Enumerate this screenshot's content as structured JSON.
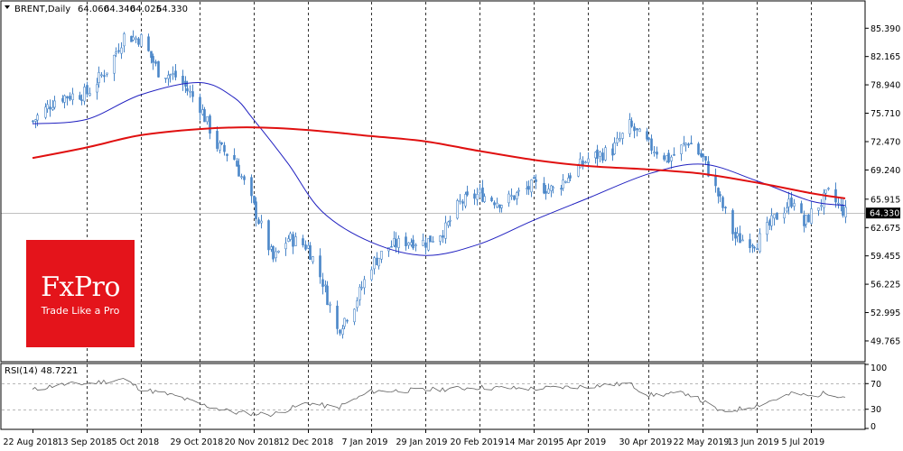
{
  "header": {
    "symbol_label": "BRENT,Daily",
    "ohlc": [
      "64.060",
      "64.340",
      "64.025",
      "64.330"
    ]
  },
  "logo": {
    "name": "FxPro",
    "tagline": "Trade Like a Pro"
  },
  "colors": {
    "candle": "#4a86c8",
    "ma_fast": "#2020c0",
    "ma_slow": "#e01010",
    "grid_vertical": "#000000",
    "rsi_line": "#606060",
    "current_price_label": "#000000",
    "logo_bg": "#e4141b"
  },
  "chart_data": [
    {
      "type": "candlestick",
      "symbol": "BRENT",
      "timeframe": "Daily",
      "last_close": 64.33,
      "price_tick_labels": [
        "85.390",
        "82.165",
        "78.940",
        "75.710",
        "72.470",
        "69.240",
        "65.915",
        "62.675",
        "59.455",
        "56.225",
        "52.995",
        "49.765"
      ],
      "current_price_label": "64.330",
      "ylim": [
        47.5,
        88.4
      ],
      "x_tick_labels": [
        "22 Aug 2018",
        "13 Sep 2018",
        "5 Oct 2018",
        "29 Oct 2018",
        "20 Nov 2018",
        "12 Dec 2018",
        "7 Jan 2019",
        "29 Jan 2019",
        "20 Feb 2019",
        "14 Mar 2019",
        "5 Apr 2019",
        "30 Apr 2019",
        "22 May 2019",
        "13 Jun 2019",
        "5 Jul 2019"
      ],
      "vertical_separators": [
        "13 Sep 2018",
        "5 Oct 2018",
        "29 Oct 2018",
        "20 Nov 2018",
        "12 Dec 2018",
        "7 Jan 2019",
        "29 Jan 2019",
        "20 Feb 2019",
        "14 Mar 2019",
        "5 Apr 2019",
        "30 Apr 2019",
        "22 May 2019",
        "13 Jun 2019",
        "5 Jul 2019"
      ],
      "close_path": [
        {
          "date": "2018-08-22",
          "close": 74.8
        },
        {
          "date": "2018-09-01",
          "close": 77.5
        },
        {
          "date": "2018-09-13",
          "close": 78.0
        },
        {
          "date": "2018-09-22",
          "close": 81.0
        },
        {
          "date": "2018-09-28",
          "close": 84.5
        },
        {
          "date": "2018-10-05",
          "close": 84.2
        },
        {
          "date": "2018-10-12",
          "close": 80.5
        },
        {
          "date": "2018-10-20",
          "close": 79.8
        },
        {
          "date": "2018-10-29",
          "close": 76.5
        },
        {
          "date": "2018-11-05",
          "close": 72.0
        },
        {
          "date": "2018-11-12",
          "close": 70.5
        },
        {
          "date": "2018-11-20",
          "close": 65.0
        },
        {
          "date": "2018-11-28",
          "close": 59.0
        },
        {
          "date": "2018-12-04",
          "close": 61.5
        },
        {
          "date": "2018-12-12",
          "close": 60.5
        },
        {
          "date": "2018-12-18",
          "close": 56.5
        },
        {
          "date": "2018-12-24",
          "close": 51.0
        },
        {
          "date": "2018-12-31",
          "close": 54.0
        },
        {
          "date": "2019-01-07",
          "close": 58.5
        },
        {
          "date": "2019-01-14",
          "close": 60.5
        },
        {
          "date": "2019-01-22",
          "close": 61.2
        },
        {
          "date": "2019-01-29",
          "close": 61.0
        },
        {
          "date": "2019-02-06",
          "close": 62.5
        },
        {
          "date": "2019-02-12",
          "close": 65.5
        },
        {
          "date": "2019-02-20",
          "close": 66.5
        },
        {
          "date": "2019-03-01",
          "close": 65.5
        },
        {
          "date": "2019-03-14",
          "close": 67.5
        },
        {
          "date": "2019-03-22",
          "close": 67.0
        },
        {
          "date": "2019-04-01",
          "close": 69.5
        },
        {
          "date": "2019-04-05",
          "close": 70.5
        },
        {
          "date": "2019-04-15",
          "close": 71.5
        },
        {
          "date": "2019-04-22",
          "close": 74.3
        },
        {
          "date": "2019-04-30",
          "close": 72.0
        },
        {
          "date": "2019-05-08",
          "close": 70.5
        },
        {
          "date": "2019-05-16",
          "close": 72.5
        },
        {
          "date": "2019-05-22",
          "close": 70.5
        },
        {
          "date": "2019-05-30",
          "close": 65.0
        },
        {
          "date": "2019-06-04",
          "close": 61.5
        },
        {
          "date": "2019-06-13",
          "close": 61.0
        },
        {
          "date": "2019-06-21",
          "close": 64.0
        },
        {
          "date": "2019-06-28",
          "close": 66.0
        },
        {
          "date": "2019-07-02",
          "close": 63.0
        },
        {
          "date": "2019-07-05",
          "close": 64.3
        },
        {
          "date": "2019-07-12",
          "close": 66.5
        },
        {
          "date": "2019-07-19",
          "close": 64.33
        }
      ],
      "overlays": [
        {
          "color": "#2020c0",
          "values": [
            {
              "date": "2018-08-22",
              "value": 74.5
            },
            {
              "date": "2018-09-13",
              "value": 75.0
            },
            {
              "date": "2018-10-05",
              "value": 77.8
            },
            {
              "date": "2018-10-29",
              "value": 79.2
            },
            {
              "date": "2018-11-12",
              "value": 77.5
            },
            {
              "date": "2018-11-20",
              "value": 75.0
            },
            {
              "date": "2018-12-04",
              "value": 70.0
            },
            {
              "date": "2018-12-18",
              "value": 64.5
            },
            {
              "date": "2019-01-07",
              "value": 61.0
            },
            {
              "date": "2019-01-29",
              "value": 59.5
            },
            {
              "date": "2019-02-20",
              "value": 60.8
            },
            {
              "date": "2019-03-14",
              "value": 63.5
            },
            {
              "date": "2019-04-05",
              "value": 66.0
            },
            {
              "date": "2019-04-30",
              "value": 68.8
            },
            {
              "date": "2019-05-22",
              "value": 69.9
            },
            {
              "date": "2019-06-13",
              "value": 68.0
            },
            {
              "date": "2019-07-05",
              "value": 65.7
            },
            {
              "date": "2019-07-19",
              "value": 65.2
            }
          ]
        },
        {
          "color": "#e01010",
          "values": [
            {
              "date": "2018-08-22",
              "value": 70.6
            },
            {
              "date": "2018-09-13",
              "value": 71.8
            },
            {
              "date": "2018-10-05",
              "value": 73.2
            },
            {
              "date": "2018-10-29",
              "value": 73.9
            },
            {
              "date": "2018-11-20",
              "value": 74.1
            },
            {
              "date": "2018-12-12",
              "value": 73.8
            },
            {
              "date": "2019-01-07",
              "value": 73.1
            },
            {
              "date": "2019-01-29",
              "value": 72.5
            },
            {
              "date": "2019-02-20",
              "value": 71.4
            },
            {
              "date": "2019-03-14",
              "value": 70.4
            },
            {
              "date": "2019-04-05",
              "value": 69.7
            },
            {
              "date": "2019-04-30",
              "value": 69.3
            },
            {
              "date": "2019-05-22",
              "value": 68.8
            },
            {
              "date": "2019-06-13",
              "value": 67.8
            },
            {
              "date": "2019-07-05",
              "value": 66.6
            },
            {
              "date": "2019-07-19",
              "value": 66.0
            }
          ]
        }
      ]
    },
    {
      "type": "line",
      "indicator_label": "RSI(14) 48.7221",
      "indicator_name": "RSI(14)",
      "last_value": 48.7221,
      "levels": [
        70,
        30
      ],
      "ylim": [
        0,
        100
      ],
      "y_tick_labels": [
        "100",
        "70",
        "30",
        "0"
      ],
      "values": [
        {
          "date": "2018-08-22",
          "value": 60
        },
        {
          "date": "2018-09-01",
          "value": 68
        },
        {
          "date": "2018-09-13",
          "value": 70
        },
        {
          "date": "2018-09-28",
          "value": 77
        },
        {
          "date": "2018-10-05",
          "value": 62
        },
        {
          "date": "2018-10-20",
          "value": 50
        },
        {
          "date": "2018-10-29",
          "value": 38
        },
        {
          "date": "2018-11-12",
          "value": 25
        },
        {
          "date": "2018-11-28",
          "value": 22
        },
        {
          "date": "2018-12-12",
          "value": 40
        },
        {
          "date": "2018-12-24",
          "value": 32
        },
        {
          "date": "2019-01-07",
          "value": 58
        },
        {
          "date": "2019-01-29",
          "value": 60
        },
        {
          "date": "2019-02-20",
          "value": 64
        },
        {
          "date": "2019-03-14",
          "value": 62
        },
        {
          "date": "2019-04-05",
          "value": 66
        },
        {
          "date": "2019-04-22",
          "value": 70
        },
        {
          "date": "2019-04-30",
          "value": 52
        },
        {
          "date": "2019-05-16",
          "value": 55
        },
        {
          "date": "2019-05-30",
          "value": 25
        },
        {
          "date": "2019-06-13",
          "value": 36
        },
        {
          "date": "2019-06-28",
          "value": 55
        },
        {
          "date": "2019-07-05",
          "value": 50
        },
        {
          "date": "2019-07-12",
          "value": 56
        },
        {
          "date": "2019-07-19",
          "value": 48.7221
        }
      ]
    }
  ]
}
